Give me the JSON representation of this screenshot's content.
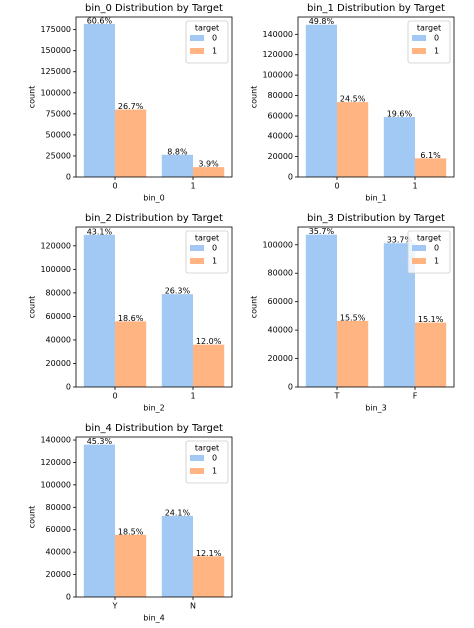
{
  "chart_data": [
    {
      "type": "bar",
      "title": "bin_0 Distribution by Target",
      "xlabel": "bin_0",
      "ylabel": "count",
      "categories": [
        "0",
        "1"
      ],
      "legend_title": "target",
      "legend": "upper right",
      "series": [
        {
          "name": "0",
          "color": "#a1c9f4",
          "values": [
            181800,
            26400
          ],
          "annotations": [
            "60.6%",
            "8.8%"
          ]
        },
        {
          "name": "1",
          "color": "#ffb482",
          "values": [
            80100,
            11700
          ],
          "annotations": [
            "26.7%",
            "3.9%"
          ]
        }
      ],
      "ylim": [
        0,
        190000
      ],
      "yticks": [
        0,
        25000,
        50000,
        75000,
        100000,
        125000,
        150000,
        175000
      ]
    },
    {
      "type": "bar",
      "title": "bin_1 Distribution by Target",
      "xlabel": "bin_1",
      "ylabel": "count",
      "categories": [
        "0",
        "1"
      ],
      "legend_title": "target",
      "legend": "upper right",
      "series": [
        {
          "name": "0",
          "color": "#a1c9f4",
          "values": [
            149400,
            58800
          ],
          "annotations": [
            "49.8%",
            "19.6%"
          ]
        },
        {
          "name": "1",
          "color": "#ffb482",
          "values": [
            73500,
            18300
          ],
          "annotations": [
            "24.5%",
            "6.1%"
          ]
        }
      ],
      "ylim": [
        0,
        157000
      ],
      "yticks": [
        0,
        20000,
        40000,
        60000,
        80000,
        100000,
        120000,
        140000
      ]
    },
    {
      "type": "bar",
      "title": "bin_2 Distribution by Target",
      "xlabel": "bin_2",
      "ylabel": "count",
      "categories": [
        "0",
        "1"
      ],
      "legend_title": "target",
      "legend": "upper right",
      "series": [
        {
          "name": "0",
          "color": "#a1c9f4",
          "values": [
            129300,
            78900
          ],
          "annotations": [
            "43.1%",
            "26.3%"
          ]
        },
        {
          "name": "1",
          "color": "#ffb482",
          "values": [
            55800,
            36000
          ],
          "annotations": [
            "18.6%",
            "12.0%"
          ]
        }
      ],
      "ylim": [
        0,
        136000
      ],
      "yticks": [
        0,
        20000,
        40000,
        60000,
        80000,
        100000,
        120000
      ]
    },
    {
      "type": "bar",
      "title": "bin_3 Distribution by Target",
      "xlabel": "bin_3",
      "ylabel": "count",
      "categories": [
        "T",
        "F"
      ],
      "legend_title": "target",
      "legend": "upper right",
      "series": [
        {
          "name": "0",
          "color": "#a1c9f4",
          "values": [
            107100,
            101100
          ],
          "annotations": [
            "35.7%",
            "33.7%"
          ]
        },
        {
          "name": "1",
          "color": "#ffb482",
          "values": [
            46500,
            45300
          ],
          "annotations": [
            "15.5%",
            "15.1%"
          ]
        }
      ],
      "ylim": [
        0,
        112500
      ],
      "yticks": [
        0,
        20000,
        40000,
        60000,
        80000,
        100000
      ]
    },
    {
      "type": "bar",
      "title": "bin_4 Distribution by Target",
      "xlabel": "bin_4",
      "ylabel": "count",
      "categories": [
        "Y",
        "N"
      ],
      "legend_title": "target",
      "legend": "upper right",
      "series": [
        {
          "name": "0",
          "color": "#a1c9f4",
          "values": [
            135900,
            72300
          ],
          "annotations": [
            "45.3%",
            "24.1%"
          ]
        },
        {
          "name": "1",
          "color": "#ffb482",
          "values": [
            55500,
            36300
          ],
          "annotations": [
            "18.5%",
            "12.1%"
          ]
        }
      ],
      "ylim": [
        0,
        142700
      ],
      "yticks": [
        0,
        20000,
        40000,
        60000,
        80000,
        100000,
        120000,
        140000
      ]
    }
  ]
}
